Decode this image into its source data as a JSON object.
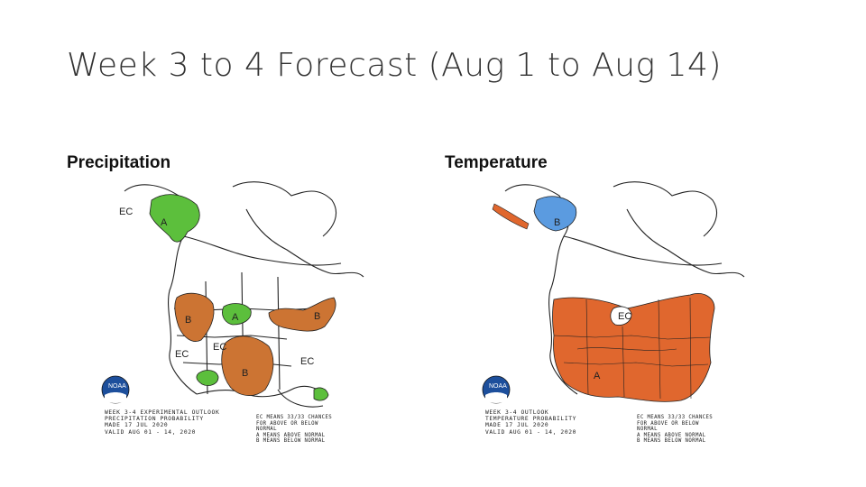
{
  "slide": {
    "title": "Week 3 to 4 Forecast (Aug 1 to Aug 14)"
  },
  "panels": [
    {
      "label": "Precipitation",
      "caption": "WEEK 3-4 EXPERIMENTAL OUTLOOK\nPRECIPITATION PROBABILITY\nMADE 17 JUL 2020\nVALID AUG 01 - 14, 2020",
      "legend": "EC MEANS 33/33 CHANCES\nFOR ABOVE OR BELOW\nNORMAL\nA MEANS ABOVE NORMAL\nB MEANS BELOW NORMAL",
      "colors": {
        "above": "#5cbf3c",
        "below": "#cc7433"
      },
      "map_labels": {
        "ec_1": "EC",
        "ec_2": "EC",
        "ec_3": "EC",
        "ec_4": "EC",
        "a_1": "A",
        "a_2": "A",
        "b_1": "B",
        "b_2": "B",
        "b_3": "B"
      }
    },
    {
      "label": "Temperature",
      "caption": "WEEK 3-4 OUTLOOK\nTEMPERATURE PROBABILITY\nMADE 17 JUL 2020\nVALID AUG 01 - 14, 2020",
      "legend": "EC MEANS 33/33 CHANCES\nFOR ABOVE OR BELOW\nNORMAL\nA MEANS ABOVE NORMAL\nB MEANS BELOW NORMAL",
      "colors": {
        "above": "#e0672e",
        "below": "#5b9be0"
      },
      "map_labels": {
        "ec_1": "EC",
        "a_1": "A",
        "b_1": "B"
      }
    }
  ],
  "logo": {
    "text": "NOAA"
  }
}
